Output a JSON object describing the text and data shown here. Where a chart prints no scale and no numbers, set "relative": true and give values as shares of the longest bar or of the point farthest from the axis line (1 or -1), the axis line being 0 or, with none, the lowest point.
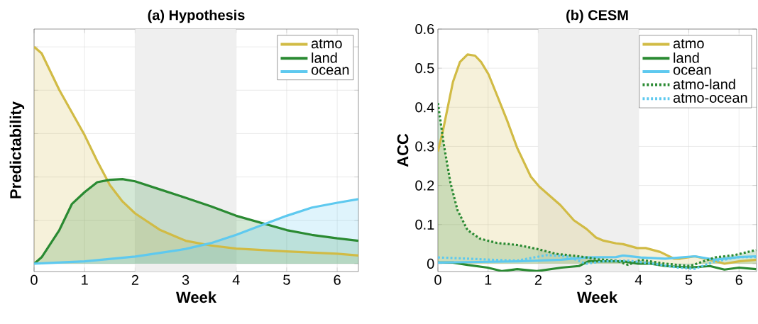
{
  "chart_data": [
    {
      "type": "area",
      "title": "(a) Hypothesis",
      "xlabel": "Week",
      "ylabel": "Predictability",
      "relative": true,
      "xlim": [
        0,
        6.42
      ],
      "xticks": [
        0,
        1,
        2,
        3,
        4,
        5,
        6
      ],
      "grid": true,
      "legend": "top right",
      "bands": [
        {
          "axis": "x",
          "from": 2,
          "to": 4,
          "color": "#efefef"
        }
      ],
      "series": [
        {
          "name": "atmo",
          "color": "#d1bb45",
          "x": [
            0,
            0.15,
            0.5,
            1.0,
            1.25,
            1.5,
            1.75,
            2.0,
            2.5,
            3.0,
            3.5,
            4.0,
            5.0,
            6.0,
            6.42
          ],
          "values": [
            1.0,
            0.97,
            0.801,
            0.593,
            0.473,
            0.363,
            0.287,
            0.232,
            0.155,
            0.106,
            0.084,
            0.07,
            0.057,
            0.046,
            0.038
          ]
        },
        {
          "name": "land",
          "color": "#2a8a32",
          "x": [
            0,
            0.15,
            0.5,
            0.75,
            1.0,
            1.25,
            1.5,
            1.75,
            2.0,
            2.5,
            3.0,
            3.5,
            4.0,
            4.5,
            5.0,
            5.5,
            6.0,
            6.42
          ],
          "values": [
            0,
            0.03,
            0.155,
            0.276,
            0.33,
            0.376,
            0.387,
            0.39,
            0.38,
            0.342,
            0.304,
            0.265,
            0.221,
            0.188,
            0.155,
            0.133,
            0.117,
            0.106
          ]
        },
        {
          "name": "ocean",
          "color": "#5ec9ef",
          "x": [
            0,
            1.0,
            2.0,
            3.0,
            3.5,
            4.0,
            4.5,
            5.0,
            5.5,
            6.0,
            6.42
          ],
          "values": [
            0,
            0.011,
            0.033,
            0.068,
            0.095,
            0.133,
            0.177,
            0.221,
            0.259,
            0.281,
            0.298
          ]
        }
      ]
    },
    {
      "type": "line",
      "title": "(b) CESM",
      "xlabel": "Week",
      "ylabel": "ACC",
      "xlim": [
        0,
        6.35
      ],
      "ylim": [
        -0.02,
        0.6
      ],
      "xticks": [
        0,
        1,
        2,
        3,
        4,
        5,
        6
      ],
      "yticks": [
        0,
        0.1,
        0.2,
        0.3,
        0.4,
        0.5,
        0.6
      ],
      "grid": true,
      "legend": "top right",
      "bands": [
        {
          "axis": "x",
          "from": 2,
          "to": 4,
          "color": "#efefef"
        }
      ],
      "series": [
        {
          "name": "atmo",
          "type": "area",
          "color": "#d1bb45",
          "line_style": "solid",
          "x": [
            0,
            0.1,
            0.3,
            0.44,
            0.59,
            0.74,
            0.86,
            1.01,
            1.18,
            1.38,
            1.58,
            1.85,
            2.02,
            2.27,
            2.44,
            2.71,
            2.96,
            3.15,
            3.3,
            3.55,
            3.69,
            3.97,
            4.14,
            4.43,
            4.7,
            4.83,
            5.12,
            5.42,
            5.71,
            6.0,
            6.34
          ],
          "values": [
            0.287,
            0.34,
            0.465,
            0.516,
            0.535,
            0.532,
            0.516,
            0.484,
            0.43,
            0.366,
            0.296,
            0.223,
            0.197,
            0.169,
            0.15,
            0.111,
            0.089,
            0.067,
            0.059,
            0.052,
            0.05,
            0.04,
            0.04,
            0.03,
            0.013,
            0.013,
            0.019,
            0.01,
            0,
            0.006,
            0.01
          ]
        },
        {
          "name": "land",
          "color": "#2a8a32",
          "line_style": "solid",
          "x": [
            0,
            0.3,
            0.59,
            0.99,
            1.28,
            1.58,
            1.97,
            2.46,
            2.81,
            3.0,
            3.3,
            3.69,
            3.99,
            4.24,
            4.53,
            5.02,
            5.42,
            5.71,
            6.0,
            6.34
          ],
          "values": [
            0.003,
            0.003,
            -0.003,
            -0.01,
            -0.019,
            -0.014,
            -0.019,
            -0.01,
            -0.006,
            0.006,
            0.006,
            0.006,
            0,
            0,
            -0.006,
            -0.01,
            -0.006,
            -0.015,
            -0.01,
            -0.014
          ]
        },
        {
          "name": "ocean",
          "color": "#5ec9ef",
          "line_style": "solid",
          "x": [
            0,
            0.59,
            1.58,
            2.46,
            2.96,
            3.55,
            3.69,
            4.04,
            4.53,
            5.12,
            5.52,
            6.0,
            6.34
          ],
          "values": [
            0.003,
            0.004,
            0.006,
            0.01,
            0.016,
            0.017,
            0.021,
            0.016,
            0.013,
            0.019,
            0.01,
            0.017,
            0.019
          ]
        },
        {
          "name": "atmo-land",
          "type": "area",
          "color": "#2a8a32",
          "line_style": "dotted",
          "x": [
            0,
            0.05,
            0.12,
            0.25,
            0.39,
            0.59,
            0.84,
            1.18,
            1.58,
            1.97,
            2.36,
            2.81,
            3.2,
            3.55,
            3.79,
            4.04,
            4.53,
            5.02,
            5.52,
            5.91,
            6.34
          ],
          "values": [
            0.411,
            0.366,
            0.303,
            0.207,
            0.137,
            0.086,
            0.064,
            0.053,
            0.048,
            0.038,
            0.025,
            0.019,
            0.011,
            0.008,
            -0.003,
            0.01,
            0,
            -0.006,
            0.016,
            0.022,
            0.035
          ]
        },
        {
          "name": "atmo-ocean",
          "color": "#5ec9ef",
          "line_style": "dotted",
          "x": [
            0,
            0.59,
            1.08,
            1.58,
            2.17,
            2.56,
            2.96,
            3.3,
            3.79,
            4.29,
            4.78,
            5.12,
            5.52,
            6.0,
            6.34
          ],
          "values": [
            0.016,
            0.013,
            0.01,
            0.008,
            0.022,
            0.019,
            0,
            0.006,
            0.008,
            0,
            -0.01,
            -0.013,
            0.006,
            0.017,
            0.017
          ]
        }
      ]
    }
  ]
}
